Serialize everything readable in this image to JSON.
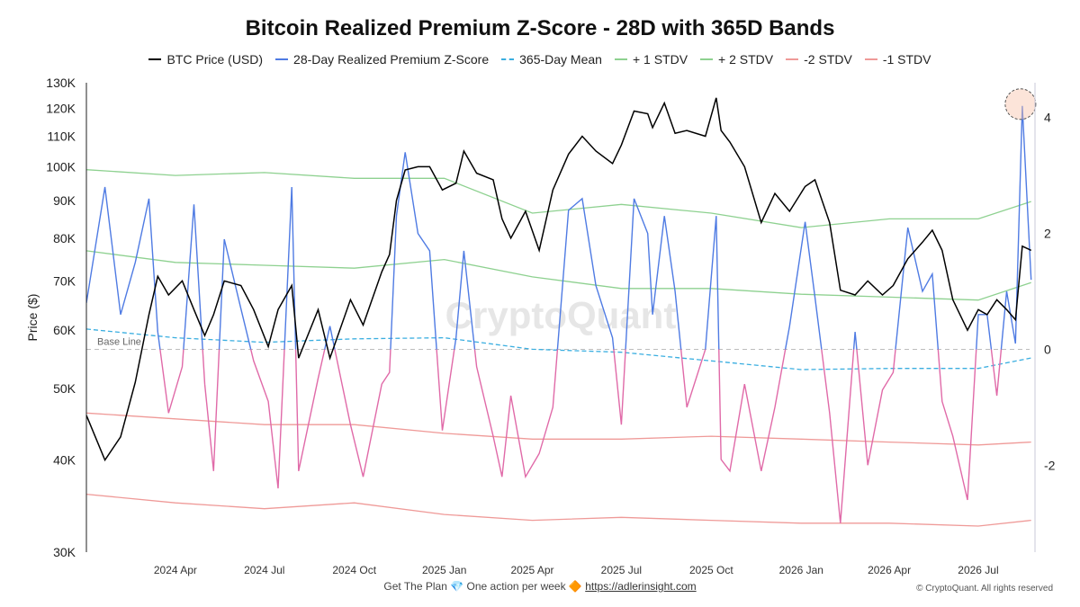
{
  "chart_data": {
    "type": "line",
    "title": "Bitcoin Realized Premium Z-Score - 28D with 365D Bands",
    "ylabel": "Price ($)",
    "y_scale": "log",
    "ylim": [
      30000,
      130000
    ],
    "y_ticks": [
      "130K",
      "120K",
      "110K",
      "100K",
      "90K",
      "80K",
      "70K",
      "60K",
      "50K",
      "40K",
      "30K"
    ],
    "y2lim": [
      -3.5,
      4.6
    ],
    "y2_ticks": [
      "4",
      "2",
      "0",
      "-2"
    ],
    "x_ticks": [
      "2024 Apr",
      "2024 Jul",
      "2024 Oct",
      "2025 Jan",
      "2025 Apr",
      "2025 Jul",
      "2025 Oct",
      "2026 Jan",
      "2026 Apr",
      "2026 Jul"
    ],
    "baseline_label": "Base Line",
    "watermark": "CryptoQuant",
    "legend_position": "top",
    "grid": false,
    "series": [
      {
        "name": "BTC Price (USD)",
        "color": "#000000",
        "axis": "left",
        "x": [
          "2024-01-01",
          "2024-01-20",
          "2024-02-05",
          "2024-02-20",
          "2024-03-05",
          "2024-03-14",
          "2024-03-25",
          "2024-04-08",
          "2024-04-20",
          "2024-05-01",
          "2024-05-10",
          "2024-05-21",
          "2024-06-07",
          "2024-06-20",
          "2024-07-05",
          "2024-07-15",
          "2024-07-29",
          "2024-08-05",
          "2024-08-25",
          "2024-09-06",
          "2024-09-27",
          "2024-10-10",
          "2024-10-29",
          "2024-11-06",
          "2024-11-13",
          "2024-11-22",
          "2024-12-05",
          "2024-12-17",
          "2024-12-30",
          "2025-01-13",
          "2025-01-21",
          "2025-02-03",
          "2025-02-20",
          "2025-03-01",
          "2025-03-10",
          "2025-03-25",
          "2025-04-08",
          "2025-04-22",
          "2025-05-08",
          "2025-05-22",
          "2025-06-05",
          "2025-06-22",
          "2025-07-01",
          "2025-07-14",
          "2025-07-28",
          "2025-08-02",
          "2025-08-14",
          "2025-08-25",
          "2025-09-06",
          "2025-09-25",
          "2025-10-06",
          "2025-10-11",
          "2025-10-20",
          "2025-11-04",
          "2025-11-21",
          "2025-12-05",
          "2025-12-20",
          "2026-01-05",
          "2026-01-15",
          "2026-01-30",
          "2026-02-10",
          "2026-02-25",
          "2026-03-10",
          "2026-03-25",
          "2026-04-05",
          "2026-04-20",
          "2026-05-05",
          "2026-05-15",
          "2026-05-25",
          "2026-06-05",
          "2026-06-20",
          "2026-07-01",
          "2026-07-10",
          "2026-07-20",
          "2026-07-30",
          "2026-08-08",
          "2026-08-15",
          "2026-08-24"
        ],
        "values": [
          46000,
          40000,
          43000,
          51000,
          63000,
          71000,
          67000,
          70000,
          64000,
          59000,
          63000,
          70000,
          69000,
          64000,
          57000,
          64000,
          69000,
          55000,
          64000,
          55000,
          66000,
          61000,
          72000,
          76000,
          90000,
          99000,
          100000,
          100000,
          93000,
          95000,
          105000,
          98000,
          96000,
          85000,
          80000,
          87000,
          77000,
          93000,
          104000,
          110000,
          105000,
          101000,
          107000,
          119000,
          118000,
          113000,
          122000,
          111000,
          112000,
          110000,
          124000,
          112000,
          108000,
          100000,
          84000,
          92000,
          87000,
          94000,
          96000,
          84000,
          68000,
          67000,
          70000,
          67000,
          69000,
          75000,
          79000,
          82000,
          77000,
          66000,
          60000,
          64000,
          63000,
          66000,
          64000,
          62000,
          78000,
          77000
        ]
      },
      {
        "name": "28-Day Realized Premium Z-Score",
        "color": "#4f7be3",
        "color_negative": "#e06aa8",
        "axis": "right",
        "x": [
          "2024-01-01",
          "2024-01-20",
          "2024-02-05",
          "2024-02-20",
          "2024-03-05",
          "2024-03-14",
          "2024-03-25",
          "2024-04-08",
          "2024-04-20",
          "2024-05-01",
          "2024-05-10",
          "2024-05-21",
          "2024-06-07",
          "2024-06-20",
          "2024-07-05",
          "2024-07-15",
          "2024-07-29",
          "2024-08-05",
          "2024-08-25",
          "2024-09-06",
          "2024-09-27",
          "2024-10-10",
          "2024-10-29",
          "2024-11-06",
          "2024-11-13",
          "2024-11-22",
          "2024-12-05",
          "2024-12-17",
          "2024-12-30",
          "2025-01-13",
          "2025-01-21",
          "2025-02-03",
          "2025-02-20",
          "2025-03-01",
          "2025-03-10",
          "2025-03-25",
          "2025-04-08",
          "2025-04-22",
          "2025-05-08",
          "2025-05-22",
          "2025-06-05",
          "2025-06-22",
          "2025-07-01",
          "2025-07-14",
          "2025-07-28",
          "2025-08-02",
          "2025-08-14",
          "2025-08-25",
          "2025-09-06",
          "2025-09-25",
          "2025-10-06",
          "2025-10-11",
          "2025-10-20",
          "2025-11-04",
          "2025-11-21",
          "2025-12-05",
          "2025-12-20",
          "2026-01-05",
          "2026-01-15",
          "2026-01-30",
          "2026-02-10",
          "2026-02-25",
          "2026-03-10",
          "2026-03-25",
          "2026-04-05",
          "2026-04-20",
          "2026-05-05",
          "2026-05-15",
          "2026-05-25",
          "2026-06-05",
          "2026-06-20",
          "2026-07-01",
          "2026-07-10",
          "2026-07-20",
          "2026-07-30",
          "2026-08-08",
          "2026-08-15",
          "2026-08-24"
        ],
        "values": [
          0.8,
          2.8,
          0.6,
          1.5,
          2.6,
          0.3,
          -1.1,
          -0.3,
          2.5,
          -0.6,
          -2.1,
          1.9,
          0.7,
          -0.2,
          -0.9,
          -2.4,
          2.8,
          -2.1,
          -0.5,
          0.4,
          -1.3,
          -2.2,
          -0.6,
          -0.4,
          2.3,
          3.4,
          2.0,
          1.7,
          -1.4,
          0.2,
          1.7,
          -0.3,
          -1.5,
          -2.2,
          -0.8,
          -2.2,
          -1.8,
          -1.0,
          2.4,
          2.6,
          1.1,
          0.2,
          -1.3,
          2.6,
          2.0,
          0.6,
          2.3,
          1.0,
          -1.0,
          0.0,
          2.3,
          -1.9,
          -2.1,
          -0.6,
          -2.1,
          -1.0,
          0.4,
          2.2,
          0.9,
          -1.1,
          -3.0,
          0.3,
          -2.0,
          -0.7,
          -0.4,
          2.1,
          1.0,
          1.3,
          -0.9,
          -1.5,
          -2.6,
          0.6,
          0.6,
          -0.8,
          1.0,
          0.1,
          4.2,
          1.2
        ]
      },
      {
        "name": "365-Day Mean",
        "color": "#3aaee0",
        "style": "dashed",
        "axis": "right",
        "x": [
          "2024-01-01",
          "2024-04-01",
          "2024-07-01",
          "2024-10-01",
          "2025-01-01",
          "2025-04-01",
          "2025-07-01",
          "2025-10-01",
          "2026-01-01",
          "2026-04-01",
          "2026-07-01",
          "2026-08-24"
        ],
        "values": [
          0.35,
          0.2,
          0.12,
          0.18,
          0.2,
          0.0,
          -0.05,
          -0.2,
          -0.35,
          -0.33,
          -0.33,
          -0.15
        ]
      },
      {
        "name": "+ 1 STDV",
        "color": "#8ed190",
        "axis": "right",
        "x": [
          "2024-01-01",
          "2024-04-01",
          "2024-07-01",
          "2024-10-01",
          "2025-01-01",
          "2025-04-01",
          "2025-07-01",
          "2025-10-01",
          "2026-01-01",
          "2026-04-01",
          "2026-07-01",
          "2026-08-24"
        ],
        "values": [
          1.7,
          1.5,
          1.45,
          1.4,
          1.55,
          1.25,
          1.05,
          1.05,
          0.95,
          0.9,
          0.85,
          1.15
        ]
      },
      {
        "name": "+ 2 STDV",
        "color": "#8ed190",
        "axis": "right",
        "x": [
          "2024-01-01",
          "2024-04-01",
          "2024-07-01",
          "2024-10-01",
          "2025-01-01",
          "2025-04-01",
          "2025-07-01",
          "2025-10-01",
          "2026-01-01",
          "2026-04-01",
          "2026-07-01",
          "2026-08-24"
        ],
        "values": [
          3.1,
          3.0,
          3.05,
          2.95,
          2.95,
          2.35,
          2.5,
          2.35,
          2.1,
          2.25,
          2.25,
          2.55
        ]
      },
      {
        "name": "-2 STDV",
        "color": "#ef9a98",
        "axis": "right",
        "x": [
          "2024-01-01",
          "2024-04-01",
          "2024-07-01",
          "2024-10-01",
          "2025-01-01",
          "2025-04-01",
          "2025-07-01",
          "2025-10-01",
          "2026-01-01",
          "2026-04-01",
          "2026-07-01",
          "2026-08-24"
        ],
        "values": [
          -2.5,
          -2.65,
          -2.75,
          -2.65,
          -2.85,
          -2.95,
          -2.9,
          -2.95,
          -3.0,
          -3.0,
          -3.05,
          -2.95
        ]
      },
      {
        "name": "-1 STDV",
        "color": "#ef9a98",
        "axis": "right",
        "x": [
          "2024-01-01",
          "2024-04-01",
          "2024-07-01",
          "2024-10-01",
          "2025-01-01",
          "2025-04-01",
          "2025-07-01",
          "2025-10-01",
          "2026-01-01",
          "2026-04-01",
          "2026-07-01",
          "2026-08-24"
        ],
        "values": [
          -1.1,
          -1.2,
          -1.3,
          -1.3,
          -1.45,
          -1.55,
          -1.55,
          -1.5,
          -1.55,
          -1.6,
          -1.65,
          -1.6
        ]
      }
    ]
  },
  "footer": {
    "promo_text": "Get The Plan",
    "promo_gem": "💎",
    "promo_mid": "One action per week",
    "promo_diamond": "🔶",
    "promo_link": "https://adlerinsight.com",
    "copyright": "© CryptoQuant. All rights reserved"
  }
}
